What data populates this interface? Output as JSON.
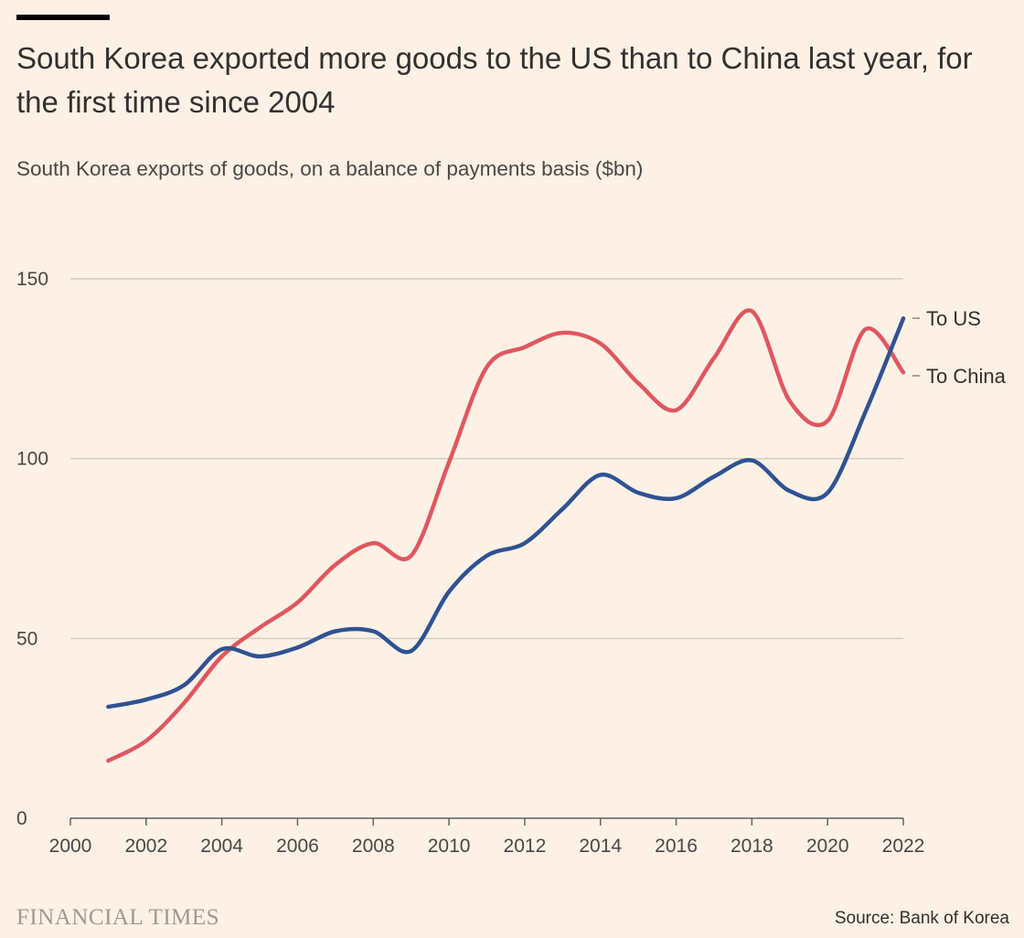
{
  "header": {
    "title": "South Korea exported more goods to the US than to China last year, for the first time since 2004",
    "subtitle": "South Korea exports of goods, on a balance of payments basis ($bn)"
  },
  "footer": {
    "logo_text": "FINANCIAL TIMES",
    "source": "Source: Bank of Korea"
  },
  "colors": {
    "background": "#FDF1E6",
    "us": "#2F5291",
    "china": "#E0575F",
    "grid": "#D5CBC1",
    "axis": "#66605C"
  },
  "chart_data": {
    "type": "line",
    "x": [
      2001,
      2002,
      2003,
      2004,
      2005,
      2006,
      2007,
      2008,
      2009,
      2010,
      2011,
      2012,
      2013,
      2014,
      2015,
      2016,
      2017,
      2018,
      2019,
      2020,
      2021,
      2022
    ],
    "series": [
      {
        "name": "To US",
        "color": "#2F5291",
        "values": [
          31,
          33,
          37,
          47,
          45,
          47.5,
          52,
          52,
          46.5,
          63,
          73,
          76.5,
          86,
          95.5,
          90.5,
          89,
          95,
          99.5,
          91,
          90.5,
          113,
          139
        ]
      },
      {
        "name": "To China",
        "color": "#E0575F",
        "values": [
          16,
          21.5,
          32,
          45,
          53,
          60,
          70.5,
          76.5,
          73,
          99,
          125.5,
          131,
          135,
          132,
          121,
          113.5,
          128,
          141,
          116,
          110.5,
          136,
          124
        ]
      }
    ],
    "xlim": [
      2000,
      2022
    ],
    "ylim": [
      0,
      150
    ],
    "xticks": [
      2000,
      2002,
      2004,
      2006,
      2008,
      2010,
      2012,
      2014,
      2016,
      2018,
      2020,
      2022
    ],
    "yticks": [
      0,
      50,
      100,
      150
    ],
    "grid": true,
    "legend": "right-end-labels"
  }
}
